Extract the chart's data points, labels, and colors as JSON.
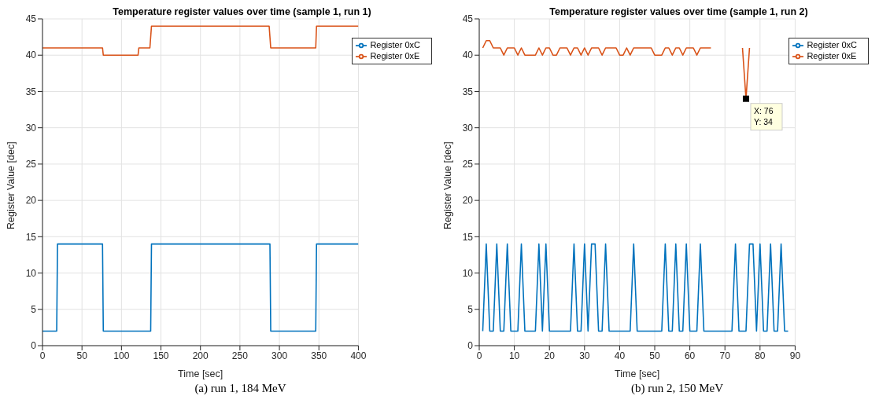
{
  "chart_data": [
    {
      "type": "line",
      "title": "Temperature register values over time (sample 1, run 1)",
      "xlabel": "Time [sec]",
      "ylabel": "Register Value [dec]",
      "xlim": [
        0,
        400
      ],
      "xticks": [
        0,
        50,
        100,
        150,
        200,
        250,
        300,
        350,
        400
      ],
      "ylim": [
        0,
        45
      ],
      "yticks": [
        0,
        5,
        10,
        15,
        20,
        25,
        30,
        35,
        40,
        45
      ],
      "grid": true,
      "legend": "top right",
      "annotations": [
        "(a) run 1, 184 MeV"
      ],
      "series": [
        {
          "name": "Register 0xC",
          "color": "#0072bd",
          "x": [
            0,
            18,
            19,
            76,
            77,
            137,
            138,
            288,
            289,
            346,
            347,
            400
          ],
          "values": [
            2,
            2,
            14,
            14,
            2,
            2,
            14,
            14,
            2,
            2,
            14,
            14
          ]
        },
        {
          "name": "Register 0xE",
          "color": "#d95319",
          "x": [
            0,
            76,
            77,
            121,
            122,
            136,
            138,
            287,
            289,
            346,
            347,
            400
          ],
          "values": [
            41,
            41,
            40,
            40,
            41,
            41,
            44,
            44,
            41,
            41,
            44,
            44
          ]
        }
      ]
    },
    {
      "type": "line",
      "title": "Temperature register values over time (sample 1, run 2)",
      "xlabel": "Time [sec]",
      "ylabel": "Register Value [dec]",
      "xlim": [
        0,
        90
      ],
      "xticks": [
        0,
        10,
        20,
        30,
        40,
        50,
        60,
        70,
        80,
        90
      ],
      "ylim": [
        0,
        45
      ],
      "yticks": [
        0,
        5,
        10,
        15,
        20,
        25,
        30,
        35,
        40,
        45
      ],
      "grid": true,
      "legend": "top right",
      "annotations": [
        {
          "text": "X: 76\nY: 34",
          "x": 76,
          "y": 34
        },
        "(b) run 2, 150 MeV"
      ],
      "series": [
        {
          "name": "Register 0xC",
          "color": "#0072bd",
          "x": [
            1,
            2,
            3,
            4,
            5,
            6,
            7,
            8,
            9,
            10,
            11,
            12,
            13,
            14,
            15,
            16,
            17,
            18,
            19,
            20,
            21,
            22,
            23,
            24,
            25,
            26,
            27,
            28,
            29,
            30,
            31,
            32,
            33,
            34,
            35,
            36,
            37,
            38,
            39,
            40,
            41,
            42,
            43,
            44,
            45,
            46,
            47,
            48,
            49,
            50,
            51,
            52,
            53,
            54,
            55,
            56,
            57,
            58,
            59,
            60,
            61,
            62,
            63,
            64,
            65,
            66,
            67,
            68,
            69,
            70,
            71,
            72,
            73,
            74,
            75,
            76,
            77,
            78,
            79,
            80,
            81,
            82,
            83,
            84,
            85,
            86,
            87,
            88
          ],
          "values": [
            2,
            14,
            2,
            2,
            14,
            2,
            2,
            14,
            2,
            2,
            2,
            14,
            2,
            2,
            2,
            2,
            14,
            2,
            14,
            2,
            2,
            2,
            2,
            2,
            2,
            2,
            14,
            2,
            2,
            14,
            2,
            14,
            14,
            2,
            2,
            14,
            2,
            2,
            2,
            2,
            2,
            2,
            2,
            14,
            2,
            2,
            2,
            2,
            2,
            2,
            2,
            2,
            14,
            2,
            2,
            14,
            2,
            2,
            14,
            2,
            2,
            2,
            14,
            2,
            2,
            2,
            2,
            2,
            2,
            2,
            2,
            2,
            14,
            2,
            2,
            2,
            14,
            14,
            2,
            14,
            2,
            2,
            14,
            2,
            2,
            14,
            2,
            2
          ]
        },
        {
          "name": "Register 0xE",
          "color": "#d95319",
          "x": [
            1,
            2,
            3,
            4,
            5,
            6,
            7,
            8,
            9,
            10,
            11,
            12,
            13,
            14,
            15,
            16,
            17,
            18,
            19,
            20,
            21,
            22,
            23,
            24,
            25,
            26,
            27,
            28,
            29,
            30,
            31,
            32,
            33,
            34,
            35,
            36,
            37,
            38,
            39,
            40,
            41,
            42,
            43,
            44,
            45,
            46,
            47,
            48,
            49,
            50,
            51,
            52,
            53,
            54,
            55,
            56,
            57,
            58,
            59,
            60,
            61,
            62,
            63,
            64,
            65,
            66,
            67,
            68,
            69,
            70,
            71,
            72,
            73,
            74,
            75,
            76,
            77
          ],
          "values": [
            41,
            42,
            42,
            41,
            41,
            41,
            40,
            41,
            41,
            41,
            40,
            41,
            40,
            40,
            40,
            40,
            41,
            40,
            41,
            41,
            40,
            40,
            41,
            41,
            41,
            40,
            41,
            41,
            40,
            41,
            40,
            41,
            41,
            41,
            40,
            41,
            41,
            41,
            41,
            40,
            40,
            41,
            40,
            41,
            41,
            41,
            41,
            41,
            41,
            40,
            40,
            40,
            41,
            41,
            40,
            41,
            41,
            40,
            41,
            41,
            41,
            40,
            41,
            41,
            41,
            41,
            null,
            null,
            null,
            null,
            null,
            null,
            null,
            null,
            41,
            34,
            41
          ]
        }
      ]
    }
  ]
}
